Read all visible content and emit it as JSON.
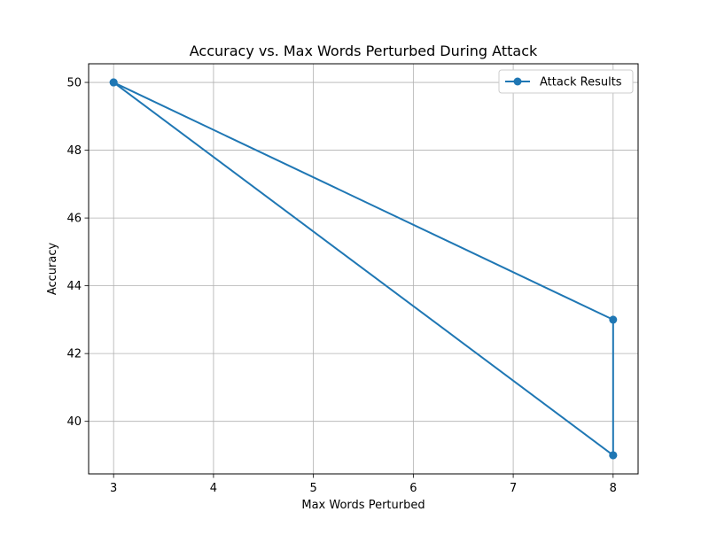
{
  "chart_data": {
    "type": "line",
    "title": "Accuracy vs. Max Words Perturbed During Attack",
    "xlabel": "Max Words Perturbed",
    "ylabel": "Accuracy",
    "xlim": [
      2.75,
      8.25
    ],
    "ylim": [
      38.45,
      50.55
    ],
    "xticks": [
      3,
      4,
      5,
      6,
      7,
      8
    ],
    "yticks": [
      40,
      42,
      44,
      46,
      48,
      50
    ],
    "grid": true,
    "legend_position": "top-right",
    "series": [
      {
        "name": "Attack Results",
        "color": "#1f77b4",
        "marker": "circle",
        "x": [
          3,
          8,
          8,
          8,
          3
        ],
        "y": [
          50,
          43,
          39,
          39,
          50
        ]
      }
    ]
  }
}
